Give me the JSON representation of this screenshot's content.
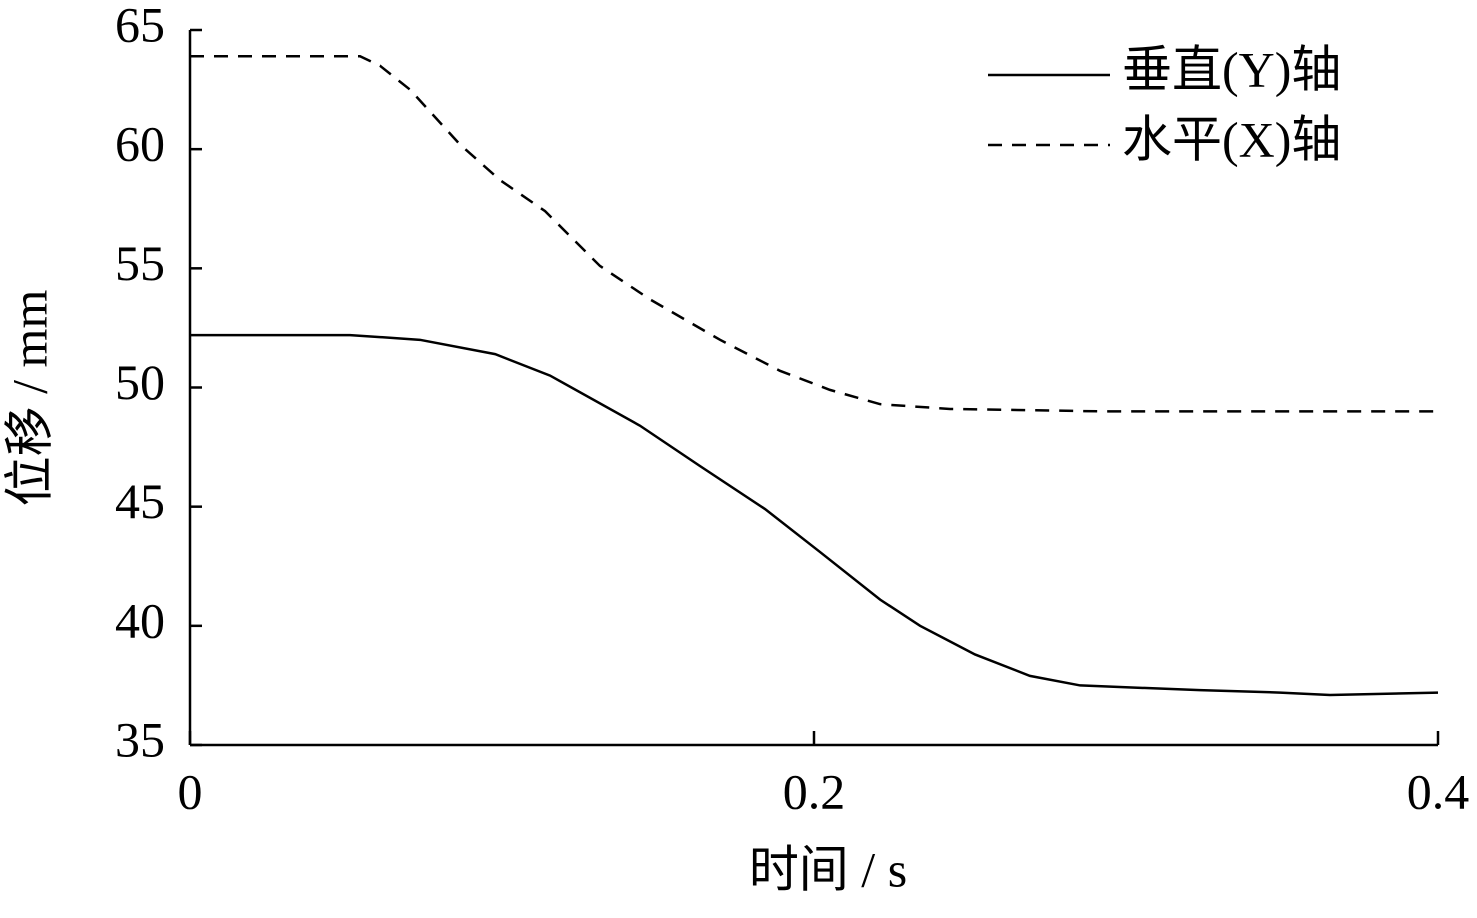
{
  "chart_data": {
    "type": "line",
    "xlabel": "时间 / s",
    "ylabel": "位移 / mm",
    "xlim": [
      0,
      0.4
    ],
    "xticks": [
      0,
      0.2,
      0.4
    ],
    "ylim": [
      35,
      65
    ],
    "yticks": [
      35,
      40,
      45,
      50,
      55,
      60,
      65
    ],
    "legend": "upper right",
    "series": [
      {
        "name": "垂直(Y)轴",
        "color": "#000000",
        "dash": "solid",
        "x": [
          0,
          0.0513,
          0.0737,
          0.0978,
          0.1154,
          0.1442,
          0.1635,
          0.1843,
          0.2019,
          0.2212,
          0.234,
          0.2516,
          0.2692,
          0.2853,
          0.3237,
          0.3494,
          0.3654,
          0.4
        ],
        "values": [
          52.2,
          52.2,
          52.0,
          51.4,
          50.5,
          48.4,
          46.7,
          44.9,
          43.1,
          41.1,
          40.0,
          38.8,
          37.9,
          37.5,
          37.3,
          37.2,
          37.1,
          37.2
        ]
      },
      {
        "name": "水平(X)轴",
        "color": "#000000",
        "dash": "dashed",
        "x": [
          0,
          0.0545,
          0.0609,
          0.0705,
          0.0865,
          0.0994,
          0.1138,
          0.1314,
          0.1474,
          0.1699,
          0.1891,
          0.2051,
          0.2212,
          0.2436,
          0.2917,
          0.4
        ],
        "values": [
          63.9,
          63.9,
          63.5,
          62.5,
          60.2,
          58.7,
          57.4,
          55.1,
          53.7,
          52.0,
          50.7,
          49.9,
          49.3,
          49.1,
          49.0,
          49.0
        ]
      }
    ]
  }
}
